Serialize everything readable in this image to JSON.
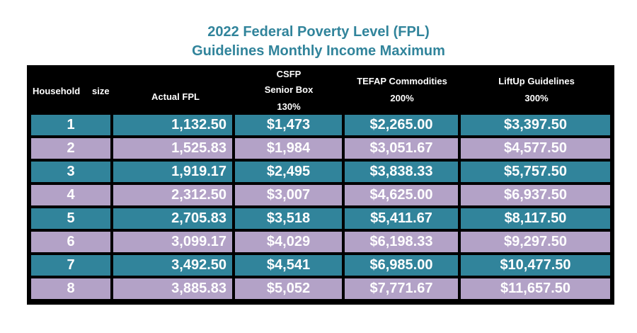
{
  "title": {
    "line1": "2022 Federal Poverty Level (FPL)",
    "line2": "Guidelines Monthly Income Maximum"
  },
  "colors": {
    "title": "#31849b",
    "teal_row": "#31849b",
    "purple_row": "#b3a2c7",
    "header_bg": "#000000"
  },
  "headers": {
    "household": "Household",
    "household_size": "size",
    "actual_fpl": "Actual FPL",
    "csfp_l1": "CSFP",
    "csfp_l2": "Senior Box",
    "csfp_l3": "130%",
    "tefap_l1": "TEFAP Commodities",
    "tefap_l2": "200%",
    "liftup_l1": "LiftUp Guidelines",
    "liftup_l2": "300%"
  },
  "rows": [
    {
      "size": "1",
      "fpl": "1,132.50",
      "csfp": "$1,473",
      "tefap": "$2,265.00",
      "liftup": "$3,397.50"
    },
    {
      "size": "2",
      "fpl": "1,525.83",
      "csfp": "$1,984",
      "tefap": "$3,051.67",
      "liftup": "$4,577.50"
    },
    {
      "size": "3",
      "fpl": "1,919.17",
      "csfp": "$2,495",
      "tefap": "$3,838.33",
      "liftup": "$5,757.50"
    },
    {
      "size": "4",
      "fpl": "2,312.50",
      "csfp": "$3,007",
      "tefap": "$4,625.00",
      "liftup": "$6,937.50"
    },
    {
      "size": "5",
      "fpl": "2,705.83",
      "csfp": "$3,518",
      "tefap": "$5,411.67",
      "liftup": "$8,117.50"
    },
    {
      "size": "6",
      "fpl": "3,099.17",
      "csfp": "$4,029",
      "tefap": "$6,198.33",
      "liftup": "$9,297.50"
    },
    {
      "size": "7",
      "fpl": "3,492.50",
      "csfp": "$4,541",
      "tefap": "$6,985.00",
      "liftup": "$10,477.50"
    },
    {
      "size": "8",
      "fpl": "3,885.83",
      "csfp": "$5,052",
      "tefap": "$7,771.67",
      "liftup": "$11,657.50"
    }
  ]
}
